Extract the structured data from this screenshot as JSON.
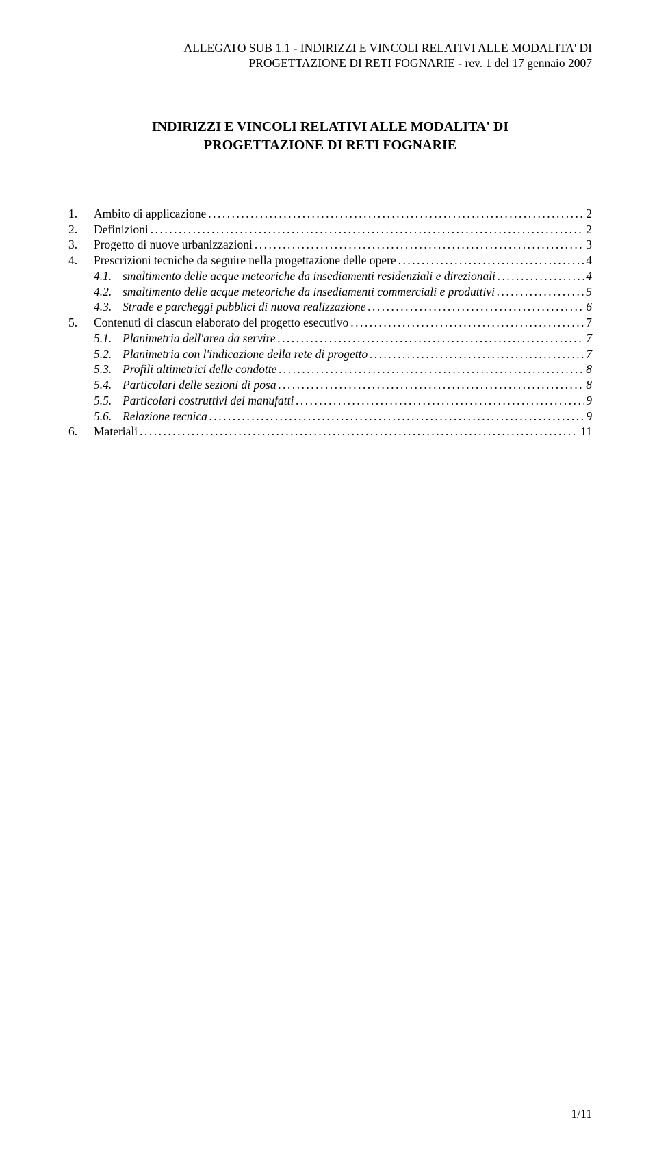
{
  "header": {
    "line1": "ALLEGATO SUB 1.1 - INDIRIZZI E VINCOLI RELATIVI ALLE MODALITA' DI",
    "line2": "PROGETTAZIONE DI RETI FOGNARIE  - rev. 1 del 17 gennaio 2007"
  },
  "title": {
    "line1": "INDIRIZZI E VINCOLI RELATIVI ALLE MODALITA' DI",
    "line2": "PROGETTAZIONE DI RETI FOGNARIE"
  },
  "toc": [
    {
      "num": "1.",
      "label": "Ambito di applicazione",
      "page": "2",
      "level": 0,
      "italic": false
    },
    {
      "num": "2.",
      "label": "Definizioni",
      "page": "2",
      "level": 0,
      "italic": false
    },
    {
      "num": "3.",
      "label": "Progetto di nuove urbanizzazioni",
      "page": "3",
      "level": 0,
      "italic": false
    },
    {
      "num": "4.",
      "label": "Prescrizioni tecniche da seguire nella progettazione delle opere",
      "page": "4",
      "level": 0,
      "italic": false
    },
    {
      "num": "4.1.",
      "label": "smaltimento delle acque meteoriche da insediamenti residenziali e direzionali",
      "page": "4",
      "level": 1,
      "italic": true
    },
    {
      "num": "4.2.",
      "label": "smaltimento delle acque meteoriche da insediamenti commerciali e produttivi",
      "page": "5",
      "level": 1,
      "italic": true
    },
    {
      "num": "4.3.",
      "label": "Strade e parcheggi pubblici di nuova realizzazione",
      "page": "6",
      "level": 1,
      "italic": true
    },
    {
      "num": "5.",
      "label": "Contenuti di ciascun elaborato del progetto esecutivo",
      "page": "7",
      "level": 0,
      "italic": false
    },
    {
      "num": "5.1.",
      "label": "Planimetria dell'area da servire",
      "page": "7",
      "level": 1,
      "italic": true
    },
    {
      "num": "5.2.",
      "label": "Planimetria con l'indicazione della rete di progetto",
      "page": "7",
      "level": 1,
      "italic": true
    },
    {
      "num": "5.3.",
      "label": "Profili altimetrici delle condotte",
      "page": "8",
      "level": 1,
      "italic": true
    },
    {
      "num": "5.4.",
      "label": "Particolari delle sezioni di posa",
      "page": "8",
      "level": 1,
      "italic": true
    },
    {
      "num": "5.5.",
      "label": "Particolari costruttivi dei manufatti",
      "page": "9",
      "level": 1,
      "italic": true
    },
    {
      "num": "5.6.",
      "label": "Relazione tecnica",
      "page": "9",
      "level": 1,
      "italic": true
    },
    {
      "num": "6.",
      "label": "Materiali",
      "page": "11",
      "level": 0,
      "italic": false
    }
  ],
  "pageNumber": "1/11"
}
